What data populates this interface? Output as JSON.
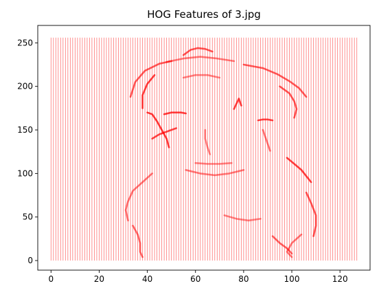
{
  "chart_data": {
    "type": "image",
    "title": "HOG Features of 3.jpg",
    "xlabel": "",
    "ylabel": "",
    "xlim": [
      -5.5,
      132.5
    ],
    "ylim": [
      -11,
      270
    ],
    "x_ticks": [
      0,
      20,
      40,
      60,
      80,
      100,
      120
    ],
    "y_ticks": [
      0,
      50,
      100,
      150,
      200,
      250
    ],
    "grid": false,
    "legend": "none",
    "colormap": "white-to-red",
    "image_extent": {
      "x": [
        0,
        127
      ],
      "y": [
        0,
        256
      ]
    },
    "column_count": 128,
    "line_color": "#ff0000",
    "image_content": "HOG gradient features of a face silhouette: strong red strokes along the head outline, eyebrows and chin",
    "feature_strokes": [
      {
        "name": "left-hair-arc",
        "points": [
          [
            33,
            188
          ],
          [
            35,
            205
          ],
          [
            39,
            218
          ],
          [
            45,
            226
          ],
          [
            50,
            229
          ]
        ],
        "intensity": 0.7
      },
      {
        "name": "left-face-edge",
        "points": [
          [
            38,
            175
          ],
          [
            38,
            190
          ],
          [
            40,
            203
          ],
          [
            43,
            213
          ]
        ],
        "intensity": 0.9
      },
      {
        "name": "left-cheek",
        "points": [
          [
            40,
            170
          ],
          [
            42,
            168
          ],
          [
            44,
            160
          ],
          [
            46,
            150
          ],
          [
            48,
            140
          ],
          [
            49,
            130
          ]
        ],
        "intensity": 0.95
      },
      {
        "name": "left-jaw",
        "points": [
          [
            42,
            140
          ],
          [
            45,
            145
          ],
          [
            48,
            148
          ],
          [
            50,
            150
          ],
          [
            52,
            152
          ]
        ],
        "intensity": 0.85
      },
      {
        "name": "left-brow",
        "points": [
          [
            47,
            168
          ],
          [
            50,
            170
          ],
          [
            54,
            170
          ],
          [
            56,
            169
          ]
        ],
        "intensity": 0.9
      },
      {
        "name": "crown",
        "points": [
          [
            55,
            236
          ],
          [
            58,
            242
          ],
          [
            61,
            244
          ],
          [
            64,
            243
          ],
          [
            67,
            240
          ]
        ],
        "intensity": 0.75
      },
      {
        "name": "crown-hairline",
        "points": [
          [
            48,
            228
          ],
          [
            55,
            232
          ],
          [
            62,
            234
          ],
          [
            69,
            232
          ],
          [
            76,
            229
          ]
        ],
        "intensity": 0.45
      },
      {
        "name": "forehead",
        "points": [
          [
            55,
            210
          ],
          [
            60,
            213
          ],
          [
            65,
            213
          ],
          [
            70,
            210
          ]
        ],
        "intensity": 0.4
      },
      {
        "name": "right-hair-arc",
        "points": [
          [
            80,
            225
          ],
          [
            88,
            221
          ],
          [
            94,
            214
          ],
          [
            99,
            206
          ],
          [
            103,
            198
          ],
          [
            106,
            188
          ]
        ],
        "intensity": 0.7
      },
      {
        "name": "right-face-edge",
        "points": [
          [
            95,
            200
          ],
          [
            99,
            192
          ],
          [
            101,
            183
          ],
          [
            102,
            174
          ],
          [
            101,
            164
          ]
        ],
        "intensity": 0.75
      },
      {
        "name": "right-brow",
        "points": [
          [
            76,
            174
          ],
          [
            77,
            180
          ],
          [
            78,
            186
          ],
          [
            79,
            178
          ]
        ],
        "intensity": 0.9
      },
      {
        "name": "right-eye",
        "points": [
          [
            86,
            161
          ],
          [
            88,
            162
          ],
          [
            90,
            162
          ],
          [
            92,
            161
          ]
        ],
        "intensity": 0.85
      },
      {
        "name": "right-cheek",
        "points": [
          [
            88,
            150
          ],
          [
            89,
            142
          ],
          [
            90,
            134
          ],
          [
            91,
            126
          ]
        ],
        "intensity": 0.5
      },
      {
        "name": "nose",
        "points": [
          [
            64,
            150
          ],
          [
            64,
            140
          ],
          [
            65,
            130
          ],
          [
            66,
            122
          ]
        ],
        "intensity": 0.4
      },
      {
        "name": "mouth",
        "points": [
          [
            60,
            112
          ],
          [
            65,
            111
          ],
          [
            70,
            111
          ],
          [
            75,
            112
          ]
        ],
        "intensity": 0.4
      },
      {
        "name": "chin",
        "points": [
          [
            56,
            104
          ],
          [
            62,
            100
          ],
          [
            68,
            98
          ],
          [
            74,
            100
          ],
          [
            80,
            104
          ]
        ],
        "intensity": 0.45
      },
      {
        "name": "neck-right",
        "points": [
          [
            98,
            118
          ],
          [
            101,
            111
          ],
          [
            104,
            104
          ],
          [
            106,
            97
          ],
          [
            108,
            90
          ]
        ],
        "intensity": 0.9
      },
      {
        "name": "shoulder-right",
        "points": [
          [
            106,
            78
          ],
          [
            108,
            66
          ],
          [
            110,
            52
          ],
          [
            110,
            40
          ],
          [
            109,
            28
          ]
        ],
        "intensity": 0.75
      },
      {
        "name": "shoulder-left",
        "points": [
          [
            42,
            100
          ],
          [
            38,
            90
          ],
          [
            34,
            80
          ],
          [
            32,
            68
          ],
          [
            31,
            58
          ],
          [
            32,
            46
          ]
        ],
        "intensity": 0.5
      },
      {
        "name": "left-body",
        "points": [
          [
            34,
            40
          ],
          [
            36,
            30
          ],
          [
            37,
            20
          ],
          [
            37,
            10
          ],
          [
            38,
            4
          ]
        ],
        "intensity": 0.6
      },
      {
        "name": "right-body",
        "points": [
          [
            100,
            4
          ],
          [
            98,
            10
          ],
          [
            100,
            20
          ],
          [
            104,
            30
          ]
        ],
        "intensity": 0.5
      },
      {
        "name": "collar",
        "points": [
          [
            72,
            52
          ],
          [
            77,
            48
          ],
          [
            82,
            46
          ],
          [
            87,
            48
          ]
        ],
        "intensity": 0.4
      },
      {
        "name": "right-lower-arc",
        "points": [
          [
            92,
            28
          ],
          [
            95,
            20
          ],
          [
            98,
            14
          ],
          [
            100,
            8
          ]
        ],
        "intensity": 0.65
      }
    ]
  }
}
